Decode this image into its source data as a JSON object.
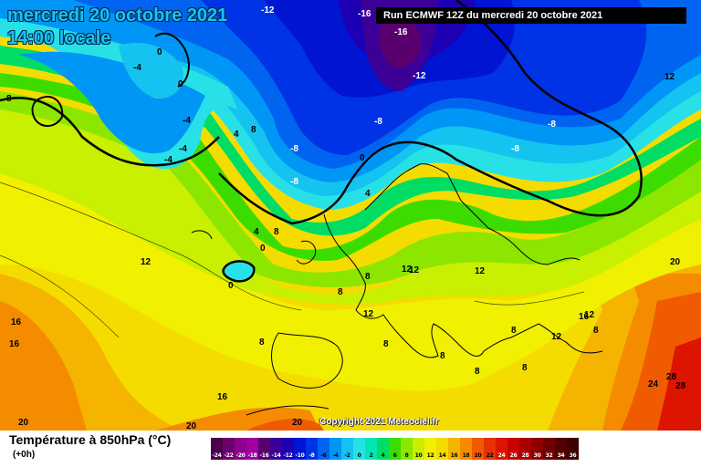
{
  "header": {
    "date": "mercredi 20 octobre 2021",
    "time": "14:00 locale",
    "run": "Run ECMWF 12Z du mercredi 20 octobre 2021"
  },
  "copyright": "Copyright 2021 Meteociel.fr",
  "legend": {
    "title": "Température à 850hPa (°C)",
    "subtitle": "(+0h)",
    "scale": [
      {
        "label": "-24",
        "color": "#4b004b"
      },
      {
        "label": "-22",
        "color": "#6e006e"
      },
      {
        "label": "-20",
        "color": "#8c008c"
      },
      {
        "label": "-18",
        "color": "#a000a0"
      },
      {
        "label": "-16",
        "color": "#5a006e"
      },
      {
        "label": "-14",
        "color": "#3c0096"
      },
      {
        "label": "-12",
        "color": "#1e00b4"
      },
      {
        "label": "-10",
        "color": "#0014d2"
      },
      {
        "label": "-8",
        "color": "#0032e6"
      },
      {
        "label": "-6",
        "color": "#0064f0"
      },
      {
        "label": "-4",
        "color": "#0096f5"
      },
      {
        "label": "-2",
        "color": "#14c3f0"
      },
      {
        "label": "0",
        "color": "#28e1e6"
      },
      {
        "label": "2",
        "color": "#00e6b4"
      },
      {
        "label": "4",
        "color": "#00dc64"
      },
      {
        "label": "6",
        "color": "#3cdc00"
      },
      {
        "label": "8",
        "color": "#8ce600"
      },
      {
        "label": "10",
        "color": "#c8f000"
      },
      {
        "label": "12",
        "color": "#f0f000"
      },
      {
        "label": "14",
        "color": "#f5dc00"
      },
      {
        "label": "16",
        "color": "#f5b400"
      },
      {
        "label": "18",
        "color": "#f58c00"
      },
      {
        "label": "20",
        "color": "#f05a00"
      },
      {
        "label": "22",
        "color": "#e63200"
      },
      {
        "label": "24",
        "color": "#dc1400"
      },
      {
        "label": "26",
        "color": "#c80000"
      },
      {
        "label": "28",
        "color": "#aa0000"
      },
      {
        "label": "30",
        "color": "#8c0000"
      },
      {
        "label": "32",
        "color": "#6e0000"
      },
      {
        "label": "34",
        "color": "#500000"
      },
      {
        "label": "36",
        "color": "#3c0000"
      }
    ]
  },
  "map": {
    "isotherm_labels": [
      {
        "text": "-12"
      },
      {
        "text": "-16"
      },
      {
        "text": "-16"
      },
      {
        "text": "-12"
      },
      {
        "text": "12"
      },
      {
        "text": "-8"
      },
      {
        "text": "-8"
      },
      {
        "text": "-8"
      },
      {
        "text": "-8"
      },
      {
        "text": "-8"
      },
      {
        "text": "-4"
      },
      {
        "text": "-4"
      },
      {
        "text": "-4"
      },
      {
        "text": "-4"
      },
      {
        "text": "0"
      },
      {
        "text": "0"
      },
      {
        "text": "8"
      },
      {
        "text": "4"
      },
      {
        "text": "8"
      },
      {
        "text": "0"
      },
      {
        "text": "4"
      },
      {
        "text": "4"
      },
      {
        "text": "0"
      },
      {
        "text": "0"
      },
      {
        "text": "12"
      },
      {
        "text": "8"
      },
      {
        "text": "12"
      },
      {
        "text": "8"
      },
      {
        "text": "12"
      },
      {
        "text": "8"
      },
      {
        "text": "12"
      },
      {
        "text": "8"
      },
      {
        "text": "12"
      },
      {
        "text": "16"
      },
      {
        "text": "16"
      },
      {
        "text": "16"
      },
      {
        "text": "16"
      },
      {
        "text": "20"
      },
      {
        "text": "20"
      },
      {
        "text": "20"
      },
      {
        "text": "20"
      },
      {
        "text": "24"
      },
      {
        "text": "28"
      },
      {
        "text": "28"
      },
      {
        "text": "8"
      },
      {
        "text": "8"
      },
      {
        "text": "8"
      },
      {
        "text": "12"
      },
      {
        "text": "12"
      },
      {
        "text": "8"
      },
      {
        "text": "8"
      },
      {
        "text": "8"
      }
    ]
  }
}
